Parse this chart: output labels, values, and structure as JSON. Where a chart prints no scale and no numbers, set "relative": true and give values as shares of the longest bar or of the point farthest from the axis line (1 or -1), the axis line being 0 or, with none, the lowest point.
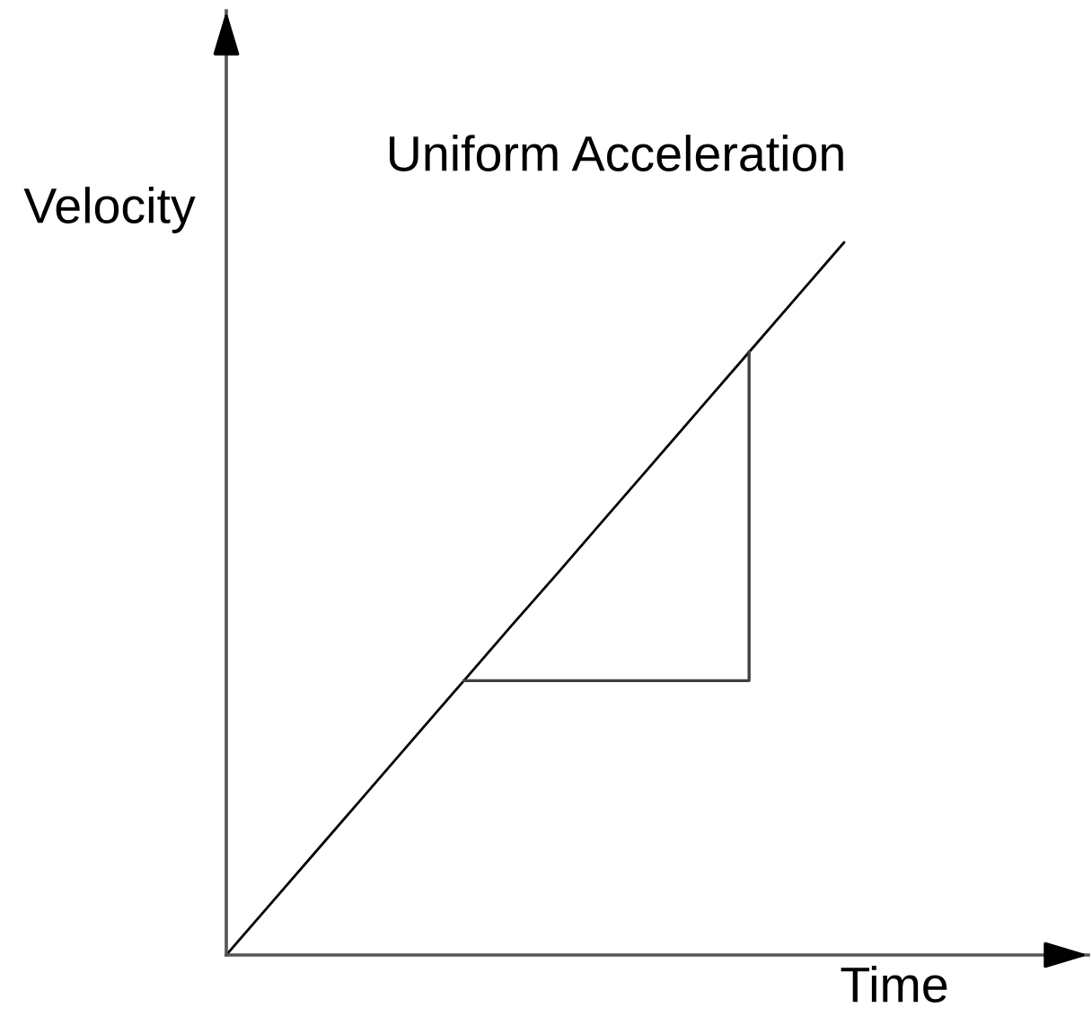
{
  "chart_data": {
    "type": "line",
    "title": "Uniform Acceleration",
    "xlabel": "Time",
    "ylabel": "Velocity",
    "relative": true,
    "line_style": "solid",
    "categories": [
      null,
      null,
      null,
      null,
      null,
      null,
      null,
      null,
      null,
      null,
      null,
      null,
      null,
      null
    ],
    "series": [
      {
        "color": "#000000",
        "values": [
          0,
          0.077,
          0.154,
          0.231,
          0.308,
          0.385,
          0.462,
          0.538,
          0.615,
          0.692,
          0.769,
          0.846,
          0.923,
          1
        ]
      },
      {
        "type": "step",
        "color": "#404040",
        "values": [
          null,
          null,
          null,
          null,
          null,
          0.385,
          0.385,
          0.385,
          0.385,
          0.385,
          0.385,
          0.846,
          null,
          null
        ]
      }
    ]
  }
}
